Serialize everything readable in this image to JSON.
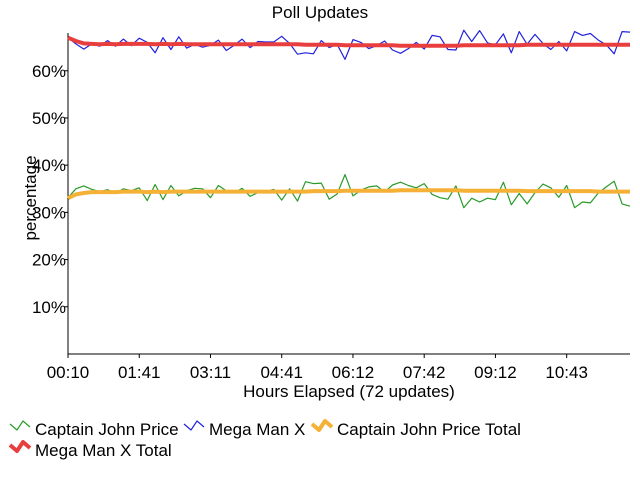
{
  "chart_data": {
    "type": "line",
    "title": "Poll Updates",
    "xlabel": "Hours Elapsed (72 updates)",
    "ylabel": "percentage",
    "ylim": [
      0,
      68
    ],
    "grid": false,
    "legend_position": "bottom",
    "y_ticks": [
      "10%",
      "20%",
      "30%",
      "40%",
      "50%",
      "60%"
    ],
    "y_tick_values": [
      10,
      20,
      30,
      40,
      50,
      60
    ],
    "x_tick_labels": [
      "00:10",
      "01:41",
      "03:11",
      "04:41",
      "06:12",
      "07:42",
      "09:12",
      "10:43"
    ],
    "x_tick_indices": [
      0,
      9,
      18,
      27,
      36,
      45,
      54,
      63
    ],
    "x_count": 72,
    "series": [
      {
        "name": "Captain John Price",
        "color": "#2a9a2a",
        "style": "thin",
        "values": [
          33.1,
          35.0,
          35.6,
          34.9,
          34.4,
          34.8,
          34.0,
          35.0,
          34.6,
          35.2,
          32.5,
          35.9,
          32.7,
          35.7,
          33.5,
          34.6,
          35.1,
          35.0,
          33.1,
          35.7,
          34.6,
          34.1,
          35.1,
          33.4,
          34.2,
          34.4,
          34.9,
          32.6,
          35.0,
          32.4,
          36.5,
          36.1,
          36.2,
          32.8,
          33.9,
          38.0,
          33.5,
          34.7,
          35.4,
          35.6,
          34.3,
          35.8,
          36.4,
          35.7,
          35.2,
          36.1,
          33.8,
          33.1,
          32.8,
          35.6,
          31.0,
          33.0,
          32.2,
          33.0,
          32.7,
          36.4,
          31.6,
          34.0,
          31.8,
          34.2,
          36.0,
          35.2,
          33.2,
          35.7,
          31.0,
          32.2,
          32.0,
          34.1,
          35.4,
          36.6,
          31.8,
          31.3
        ]
      },
      {
        "name": "Mega Man X",
        "color": "#2222dd",
        "style": "thin",
        "values": [
          67.0,
          65.7,
          64.6,
          65.7,
          65.2,
          66.4,
          65.2,
          66.7,
          65.3,
          66.9,
          66.0,
          63.8,
          67.0,
          64.5,
          67.2,
          64.8,
          65.6,
          65.0,
          65.4,
          66.5,
          64.3,
          65.4,
          66.7,
          64.9,
          66.2,
          66.1,
          66.1,
          67.3,
          65.8,
          63.5,
          63.8,
          63.6,
          66.4,
          64.9,
          65.6,
          62.4,
          66.6,
          66.0,
          64.7,
          65.3,
          66.3,
          64.4,
          63.7,
          64.7,
          66.0,
          64.6,
          67.5,
          67.2,
          64.5,
          64.4,
          68.6,
          66.2,
          68.5,
          65.9,
          65.5,
          67.8,
          63.8,
          68.3,
          65.6,
          67.7,
          65.8,
          64.5,
          66.2,
          64.2,
          68.3,
          67.5,
          67.9,
          66.5,
          65.5,
          63.6,
          68.3,
          68.2
        ]
      },
      {
        "name": "Captain John Price Total",
        "color": "#f5b135",
        "style": "thick",
        "values": [
          33.0,
          33.8,
          34.1,
          34.3,
          34.3,
          34.3,
          34.3,
          34.4,
          34.4,
          34.4,
          34.3,
          34.4,
          34.3,
          34.4,
          34.4,
          34.4,
          34.4,
          34.4,
          34.4,
          34.4,
          34.4,
          34.4,
          34.4,
          34.4,
          34.4,
          34.4,
          34.4,
          34.4,
          34.4,
          34.4,
          34.4,
          34.5,
          34.5,
          34.5,
          34.5,
          34.6,
          34.6,
          34.6,
          34.6,
          34.6,
          34.6,
          34.6,
          34.7,
          34.7,
          34.7,
          34.7,
          34.7,
          34.7,
          34.7,
          34.7,
          34.6,
          34.6,
          34.6,
          34.6,
          34.6,
          34.6,
          34.6,
          34.6,
          34.5,
          34.5,
          34.5,
          34.5,
          34.5,
          34.5,
          34.5,
          34.5,
          34.5,
          34.4,
          34.4,
          34.4,
          34.4,
          34.4
        ]
      },
      {
        "name": "Mega Man X Total",
        "color": "#e83e3e",
        "style": "thick",
        "values": [
          67.0,
          66.3,
          65.8,
          65.7,
          65.6,
          65.7,
          65.6,
          65.7,
          65.7,
          65.7,
          65.7,
          65.6,
          65.7,
          65.6,
          65.7,
          65.6,
          65.6,
          65.6,
          65.6,
          65.6,
          65.6,
          65.6,
          65.6,
          65.6,
          65.6,
          65.6,
          65.6,
          65.6,
          65.6,
          65.6,
          65.5,
          65.5,
          65.5,
          65.5,
          65.5,
          65.4,
          65.4,
          65.4,
          65.4,
          65.4,
          65.4,
          65.4,
          65.3,
          65.3,
          65.3,
          65.3,
          65.3,
          65.3,
          65.3,
          65.3,
          65.4,
          65.4,
          65.4,
          65.4,
          65.4,
          65.4,
          65.4,
          65.4,
          65.5,
          65.5,
          65.5,
          65.5,
          65.5,
          65.5,
          65.5,
          65.5,
          65.5,
          65.5,
          65.5,
          65.5,
          65.5,
          65.5
        ]
      }
    ]
  }
}
